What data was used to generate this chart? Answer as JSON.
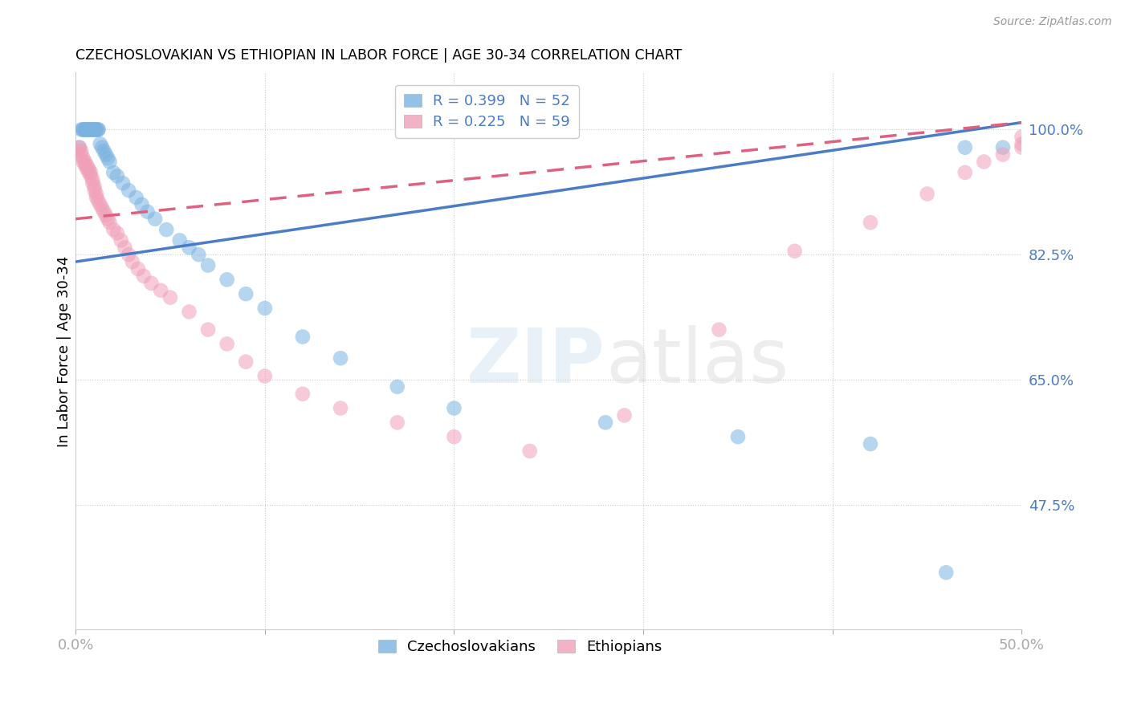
{
  "title": "CZECHOSLOVAKIAN VS ETHIOPIAN IN LABOR FORCE | AGE 30-34 CORRELATION CHART",
  "source": "Source: ZipAtlas.com",
  "ylabel_label": "In Labor Force | Age 30-34",
  "x_min": 0.0,
  "x_max": 0.5,
  "y_min": 0.3,
  "y_max": 1.08,
  "x_ticks": [
    0.0,
    0.1,
    0.2,
    0.3,
    0.4,
    0.5
  ],
  "x_tick_labels": [
    "0.0%",
    "",
    "",
    "",
    "",
    "50.0%"
  ],
  "y_tick_positions": [
    0.475,
    0.65,
    0.825,
    1.0
  ],
  "y_tick_labels": [
    "47.5%",
    "65.0%",
    "82.5%",
    "100.0%"
  ],
  "blue_color": "#7ab3e0",
  "pink_color": "#f0a0b8",
  "blue_line_color": "#4a7cc7",
  "pink_line_color": "#e06080",
  "legend_blue_R": "R = 0.399",
  "legend_blue_N": "N = 52",
  "legend_pink_R": "R = 0.225",
  "legend_pink_N": "N = 59",
  "watermark_zip": "ZIP",
  "watermark_atlas": "atlas",
  "blue_scatter_x": [
    0.002,
    0.003,
    0.004,
    0.004,
    0.005,
    0.005,
    0.006,
    0.006,
    0.007,
    0.007,
    0.008,
    0.008,
    0.009,
    0.009,
    0.01,
    0.01,
    0.011,
    0.011,
    0.012,
    0.012,
    0.013,
    0.014,
    0.015,
    0.016,
    0.017,
    0.018,
    0.02,
    0.022,
    0.025,
    0.028,
    0.032,
    0.035,
    0.038,
    0.042,
    0.048,
    0.055,
    0.06,
    0.065,
    0.07,
    0.08,
    0.09,
    0.1,
    0.12,
    0.14,
    0.17,
    0.2,
    0.28,
    0.35,
    0.42,
    0.46,
    0.47,
    0.49
  ],
  "blue_scatter_y": [
    0.975,
    1.0,
    1.0,
    1.0,
    1.0,
    1.0,
    1.0,
    1.0,
    1.0,
    1.0,
    1.0,
    1.0,
    1.0,
    1.0,
    1.0,
    1.0,
    1.0,
    1.0,
    1.0,
    1.0,
    1.0,
    1.0,
    1.0,
    1.0,
    1.0,
    1.0,
    0.975,
    0.96,
    0.955,
    0.945,
    0.935,
    0.925,
    0.915,
    0.9,
    0.89,
    0.875,
    0.865,
    0.855,
    0.84,
    0.82,
    0.8,
    0.78,
    0.72,
    0.7,
    0.66,
    0.62,
    0.6,
    0.57,
    0.56,
    0.4,
    0.975,
    0.975
  ],
  "blue_scatter_y_real": [
    0.975,
    1.0,
    1.0,
    1.0,
    1.0,
    1.0,
    1.0,
    1.0,
    1.0,
    1.0,
    1.0,
    1.0,
    1.0,
    1.0,
    1.0,
    1.0,
    1.0,
    1.0,
    1.0,
    1.0,
    0.98,
    0.975,
    0.97,
    0.965,
    0.96,
    0.955,
    0.94,
    0.935,
    0.925,
    0.915,
    0.905,
    0.895,
    0.885,
    0.875,
    0.86,
    0.845,
    0.835,
    0.825,
    0.81,
    0.79,
    0.77,
    0.75,
    0.71,
    0.68,
    0.64,
    0.61,
    0.59,
    0.57,
    0.56,
    0.38,
    0.975,
    0.975
  ],
  "pink_scatter_x": [
    0.001,
    0.002,
    0.003,
    0.003,
    0.004,
    0.004,
    0.005,
    0.005,
    0.006,
    0.006,
    0.007,
    0.007,
    0.008,
    0.008,
    0.009,
    0.009,
    0.01,
    0.01,
    0.011,
    0.011,
    0.012,
    0.013,
    0.014,
    0.015,
    0.016,
    0.017,
    0.018,
    0.02,
    0.022,
    0.024,
    0.026,
    0.028,
    0.03,
    0.033,
    0.036,
    0.04,
    0.045,
    0.05,
    0.06,
    0.07,
    0.08,
    0.09,
    0.1,
    0.12,
    0.14,
    0.17,
    0.2,
    0.24,
    0.29,
    0.34,
    0.38,
    0.42,
    0.45,
    0.47,
    0.48,
    0.49,
    0.5,
    0.5,
    0.5
  ],
  "pink_scatter_y": [
    0.97,
    0.975,
    0.97,
    0.965,
    0.96,
    0.955,
    0.955,
    0.95,
    0.95,
    0.945,
    0.945,
    0.94,
    0.94,
    0.935,
    0.93,
    0.925,
    0.92,
    0.915,
    0.91,
    0.905,
    0.9,
    0.895,
    0.89,
    0.885,
    0.88,
    0.875,
    0.87,
    0.86,
    0.855,
    0.845,
    0.835,
    0.825,
    0.815,
    0.805,
    0.795,
    0.785,
    0.775,
    0.765,
    0.745,
    0.72,
    0.7,
    0.675,
    0.655,
    0.63,
    0.61,
    0.59,
    0.57,
    0.55,
    0.6,
    0.72,
    0.83,
    0.87,
    0.91,
    0.94,
    0.955,
    0.965,
    0.975,
    0.98,
    0.99
  ]
}
